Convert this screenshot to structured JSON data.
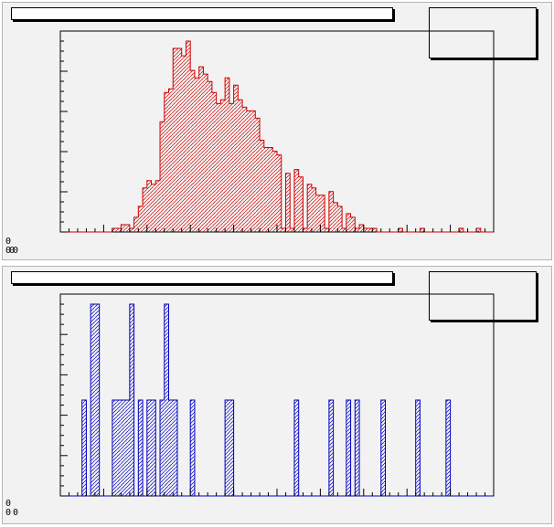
{
  "app": {
    "window_title": ""
  },
  "colors": {
    "pad_background": "#f2f2f2",
    "frame": "#000000",
    "top_series": "#d00000",
    "bottom_series": "#0000c0"
  },
  "panels": [
    {
      "id": "top",
      "title": "",
      "stats_text": "",
      "corner_glyphs": [
        "0",
        "000"
      ]
    },
    {
      "id": "bottom",
      "title": "",
      "stats_text": "",
      "corner_glyphs": [
        "0",
        "0 0"
      ]
    }
  ],
  "chart_data": [
    {
      "type": "bar",
      "style": "step-histogram",
      "fill": "hatched",
      "color": "#d00000",
      "x_bins": 100,
      "ylim": [
        0,
        52
      ],
      "values": [
        0,
        0,
        0,
        0,
        0,
        0,
        0,
        0,
        0,
        0,
        0,
        0,
        1,
        1,
        2,
        2,
        1,
        4,
        7,
        12,
        14,
        13,
        14,
        30,
        38,
        39,
        50,
        50,
        48,
        52,
        44,
        42,
        45,
        43,
        41,
        38,
        35,
        36,
        42,
        35,
        40,
        36,
        34,
        33,
        33,
        31,
        25,
        23,
        23,
        22,
        21,
        18,
        16,
        19,
        17,
        15,
        14,
        13,
        12,
        10,
        10,
        8,
        11,
        8,
        7,
        6,
        5,
        4,
        3,
        2,
        1,
        1,
        1,
        0,
        0,
        0,
        0,
        0,
        0,
        0,
        0,
        0,
        0,
        0,
        0,
        0,
        0,
        0,
        0,
        0,
        0,
        0,
        0,
        0,
        0,
        0,
        0,
        0,
        0,
        0
      ],
      "sparse_bins": [
        {
          "bin": 51,
          "value": 1
        },
        {
          "bin": 53,
          "value": 1
        },
        {
          "bin": 56,
          "value": 1
        },
        {
          "bin": 61,
          "value": 1
        },
        {
          "bin": 65,
          "value": 1
        },
        {
          "bin": 68,
          "value": 1
        },
        {
          "bin": 78,
          "value": 1
        },
        {
          "bin": 83,
          "value": 1
        },
        {
          "bin": 92,
          "value": 1
        },
        {
          "bin": 96,
          "value": 1
        }
      ],
      "grid": false,
      "legend": "top-right"
    },
    {
      "type": "bar",
      "style": "step-histogram",
      "fill": "hatched",
      "color": "#0000c0",
      "x_bins": 100,
      "ylim": [
        0,
        2
      ],
      "values": [
        0,
        0,
        0,
        0,
        0,
        1,
        0,
        2,
        2,
        0,
        0,
        0,
        1,
        1,
        1,
        1,
        2,
        0,
        1,
        0,
        1,
        1,
        0,
        1,
        2,
        1,
        1,
        0,
        0,
        0,
        1,
        0,
        0,
        0,
        0,
        0,
        0,
        0,
        1,
        1,
        0,
        0,
        0,
        0,
        0,
        0,
        0,
        0,
        0,
        0,
        0,
        0,
        0,
        0,
        1,
        0,
        0,
        0,
        0,
        0,
        0,
        0,
        1,
        0,
        0,
        0,
        1,
        0,
        1,
        0,
        0,
        0,
        0,
        0,
        1,
        0,
        0,
        0,
        0,
        0,
        0,
        0,
        1,
        0,
        0,
        0,
        0,
        0,
        0,
        1,
        0,
        0,
        0,
        0,
        0,
        0,
        0,
        0,
        0,
        0
      ],
      "grid": false,
      "legend": "top-right"
    }
  ]
}
